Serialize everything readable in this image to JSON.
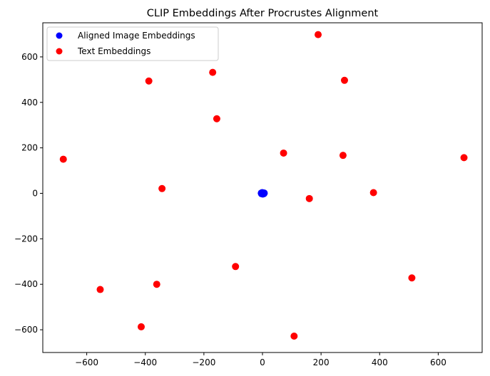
{
  "chart_data": {
    "type": "scatter",
    "title": "CLIP Embeddings After Procrustes Alignment",
    "xlabel": "",
    "ylabel": "",
    "xlim": [
      -750,
      750
    ],
    "ylim": [
      -700,
      750
    ],
    "xticks": [
      -600,
      -400,
      -200,
      0,
      200,
      400,
      600
    ],
    "yticks": [
      -600,
      -400,
      -200,
      0,
      200,
      400,
      600
    ],
    "grid": false,
    "legend_position": "top-left",
    "series": [
      {
        "name": "Aligned Image Embeddings",
        "color": "#0000ff",
        "points": [
          [
            -3,
            -2
          ],
          [
            3,
            2
          ],
          [
            5,
            -1
          ],
          [
            -1,
            3
          ],
          [
            1,
            -3
          ],
          [
            6,
            1
          ],
          [
            -4,
            1
          ],
          [
            2,
            0
          ],
          [
            0,
            1
          ],
          [
            4,
            -2
          ]
        ]
      },
      {
        "name": "Text Embeddings",
        "color": "#ff0000",
        "points": [
          [
            190,
            698
          ],
          [
            -170,
            532
          ],
          [
            280,
            497
          ],
          [
            -388,
            494
          ],
          [
            -156,
            328
          ],
          [
            72,
            177
          ],
          [
            275,
            167
          ],
          [
            -680,
            150
          ],
          [
            688,
            157
          ],
          [
            -343,
            21
          ],
          [
            379,
            3
          ],
          [
            160,
            -23
          ],
          [
            -92,
            -322
          ],
          [
            -554,
            -423
          ],
          [
            510,
            -372
          ],
          [
            -361,
            -400
          ],
          [
            -414,
            -587
          ],
          [
            108,
            -628
          ]
        ]
      }
    ]
  }
}
